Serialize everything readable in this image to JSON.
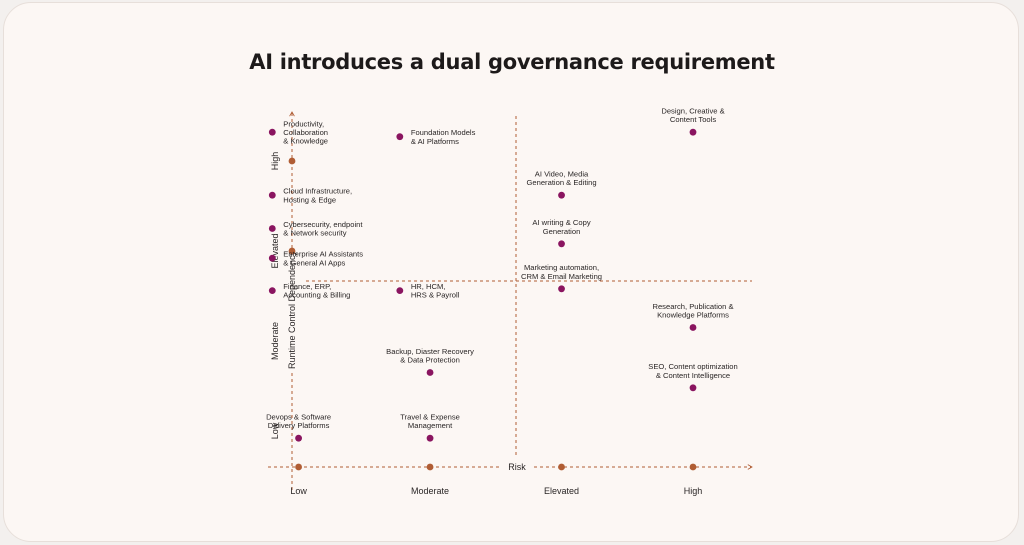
{
  "title": "AI introduces a dual governance requirement",
  "colors": {
    "axis": "#b05d34",
    "point": "#8a1560",
    "text": "#2a2626",
    "background": "#fcf7f4"
  },
  "chart_data": {
    "type": "scatter",
    "xlabel": "Risk",
    "ylabel": "Runtime Control Dependency",
    "x_ticks": [
      {
        "label": "Low",
        "value": 1
      },
      {
        "label": "Moderate",
        "value": 2
      },
      {
        "label": "Elevated",
        "value": 3
      },
      {
        "label": "High",
        "value": 4
      }
    ],
    "y_ticks": [
      {
        "label": "Low",
        "value": 1
      },
      {
        "label": "Moderate",
        "value": 2
      },
      {
        "label": "Elevated",
        "value": 3
      },
      {
        "label": "High",
        "value": 4
      }
    ],
    "xlim": [
      0.6,
      4.6
    ],
    "ylim": [
      0.6,
      4.7
    ],
    "quadrant_dividers": {
      "x": 2.7,
      "y": 2.7
    },
    "grid": false,
    "points": [
      {
        "label": [
          "Productivity,",
          "Collaboration",
          "& Knowledge"
        ],
        "x": 0.8,
        "y": 4.32,
        "label_pos": "right"
      },
      {
        "label": [
          "Foundation Models",
          "& AI Platforms"
        ],
        "x": 1.77,
        "y": 4.27,
        "label_pos": "right"
      },
      {
        "label": [
          "Cloud Infrastructure,",
          "Hosting & Edge"
        ],
        "x": 0.8,
        "y": 3.62,
        "label_pos": "right"
      },
      {
        "label": [
          "Cybersecurity, endpoint",
          "& Network security"
        ],
        "x": 0.8,
        "y": 3.25,
        "label_pos": "right"
      },
      {
        "label": [
          "Enterprise AI Assistants",
          "& General AI Apps"
        ],
        "x": 0.8,
        "y": 2.92,
        "label_pos": "right"
      },
      {
        "label": [
          "Finance, ERP,",
          "Accounting & Billing"
        ],
        "x": 0.8,
        "y": 2.56,
        "label_pos": "right"
      },
      {
        "label": [
          "HR, HCM,",
          "HRS & Payroll"
        ],
        "x": 1.77,
        "y": 2.56,
        "label_pos": "right"
      },
      {
        "label": [
          "Design, Creative &",
          "Content Tools"
        ],
        "x": 4.0,
        "y": 4.32,
        "label_pos": "above"
      },
      {
        "label": [
          "AI Video, Media",
          "Generation & Editing"
        ],
        "x": 3.0,
        "y": 3.62,
        "label_pos": "above"
      },
      {
        "label": [
          "AI writing & Copy",
          "Generation"
        ],
        "x": 3.0,
        "y": 3.08,
        "label_pos": "above"
      },
      {
        "label": [
          "Marketing automation,",
          "CRM & Email Marketing"
        ],
        "x": 3.0,
        "y": 2.58,
        "label_pos": "above"
      },
      {
        "label": [
          "Research, Publication &",
          "Knowledge Platforms"
        ],
        "x": 4.0,
        "y": 2.15,
        "label_pos": "above"
      },
      {
        "label": [
          "SEO, Content optimization",
          "& Content Intelligence"
        ],
        "x": 4.0,
        "y": 1.48,
        "label_pos": "above"
      },
      {
        "label": [
          "Backup, Diaster Recovery",
          "& Data Protection"
        ],
        "x": 2.0,
        "y": 1.65,
        "label_pos": "above"
      },
      {
        "label": [
          "Devops & Software",
          "Delivery Platforms"
        ],
        "x": 1.0,
        "y": 0.92,
        "label_pos": "above"
      },
      {
        "label": [
          "Travel & Expense",
          "Management"
        ],
        "x": 2.0,
        "y": 0.92,
        "label_pos": "above"
      }
    ]
  }
}
